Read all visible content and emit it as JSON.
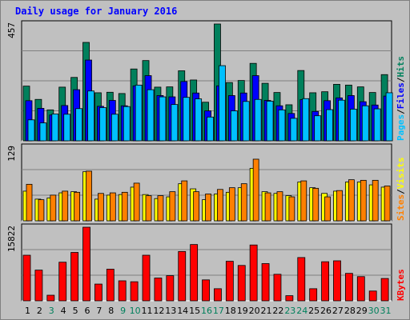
{
  "title": "Daily usage for January 2016",
  "colors": {
    "background": "#c0c0c0",
    "hits": "#00805c",
    "files": "#0000ff",
    "pages": "#00c0ff",
    "visits": "#ffff00",
    "sites": "#ff8000",
    "kbytes": "#ff0000",
    "weekday_label": "#000000",
    "weekend_label": "#00805c"
  },
  "chart_data": [
    {
      "type": "bar",
      "panel": "hits-files-pages",
      "ymax_label": "457",
      "ylim": [
        0,
        457
      ],
      "legend": [
        "Pages",
        "Files",
        "Hits"
      ],
      "legend_separator": "/",
      "categories": [
        "1",
        "2",
        "3",
        "4",
        "5",
        "6",
        "7",
        "8",
        "9",
        "10",
        "11",
        "12",
        "13",
        "14",
        "15",
        "16",
        "17",
        "18",
        "19",
        "20",
        "21",
        "22",
        "23",
        "24",
        "25",
        "26",
        "27",
        "28",
        "29",
        "30",
        "31"
      ],
      "series": [
        {
          "name": "Hits",
          "values": [
            214,
            162,
            121,
            210,
            248,
            385,
            188,
            190,
            185,
            281,
            314,
            210,
            211,
            274,
            238,
            151,
            457,
            228,
            236,
            303,
            225,
            189,
            141,
            275,
            188,
            192,
            221,
            218,
            211,
            189,
            259
          ]
        },
        {
          "name": "Files",
          "values": [
            157,
            127,
            101,
            138,
            200,
            316,
            135,
            158,
            137,
            215,
            255,
            177,
            172,
            232,
            187,
            117,
            215,
            177,
            187,
            255,
            158,
            137,
            107,
            161,
            115,
            157,
            168,
            177,
            153,
            140,
            175
          ]
        },
        {
          "name": "Pages",
          "values": [
            82,
            70,
            105,
            104,
            126,
            195,
            130,
            104,
            134,
            218,
            200,
            172,
            142,
            170,
            164,
            93,
            294,
            117,
            154,
            162,
            155,
            121,
            88,
            165,
            98,
            122,
            159,
            124,
            137,
            125,
            188
          ]
        }
      ]
    },
    {
      "type": "bar",
      "panel": "visits-sites",
      "ymax_label": "129",
      "ylim": [
        0,
        129
      ],
      "legend": [
        "Sites",
        "Visits"
      ],
      "legend_separator": "/",
      "categories": [
        "1",
        "2",
        "3",
        "4",
        "5",
        "6",
        "7",
        "8",
        "9",
        "10",
        "11",
        "12",
        "13",
        "14",
        "15",
        "16",
        "17",
        "18",
        "19",
        "20",
        "21",
        "22",
        "23",
        "24",
        "25",
        "26",
        "27",
        "28",
        "29",
        "30",
        "31"
      ],
      "series": [
        {
          "name": "Visits",
          "values": [
            52,
            38,
            40,
            49,
            51,
            86,
            38,
            45,
            46,
            59,
            46,
            39,
            42,
            65,
            56,
            37,
            47,
            50,
            58,
            92,
            51,
            48,
            44,
            68,
            58,
            48,
            52,
            68,
            68,
            63,
            59
          ]
        },
        {
          "name": "Sites",
          "values": [
            64,
            37,
            45,
            52,
            50,
            87,
            48,
            49,
            50,
            66,
            44,
            44,
            51,
            70,
            51,
            47,
            55,
            58,
            65,
            108,
            49,
            51,
            42,
            70,
            57,
            42,
            53,
            72,
            71,
            71,
            61
          ]
        }
      ]
    },
    {
      "type": "bar",
      "panel": "kbytes",
      "ymax_label": "15822",
      "ylim": [
        0,
        15822
      ],
      "legend": [
        "KBytes"
      ],
      "categories": [
        "1",
        "2",
        "3",
        "4",
        "5",
        "6",
        "7",
        "8",
        "9",
        "10",
        "11",
        "12",
        "13",
        "14",
        "15",
        "16",
        "17",
        "18",
        "19",
        "20",
        "21",
        "22",
        "23",
        "24",
        "25",
        "26",
        "27",
        "28",
        "29",
        "30",
        "31"
      ],
      "series": [
        {
          "name": "KBytes",
          "values": [
            9800,
            6600,
            1200,
            8300,
            10400,
            15822,
            3600,
            6800,
            4300,
            4100,
            9800,
            4900,
            5400,
            10600,
            12100,
            4500,
            2600,
            8500,
            7600,
            12000,
            8000,
            5700,
            1100,
            9300,
            2600,
            8400,
            8600,
            5900,
            5200,
            2100,
            4800
          ]
        }
      ]
    }
  ],
  "weekend_days": [
    "3",
    "9",
    "10",
    "16",
    "17",
    "23",
    "24",
    "30",
    "31"
  ]
}
